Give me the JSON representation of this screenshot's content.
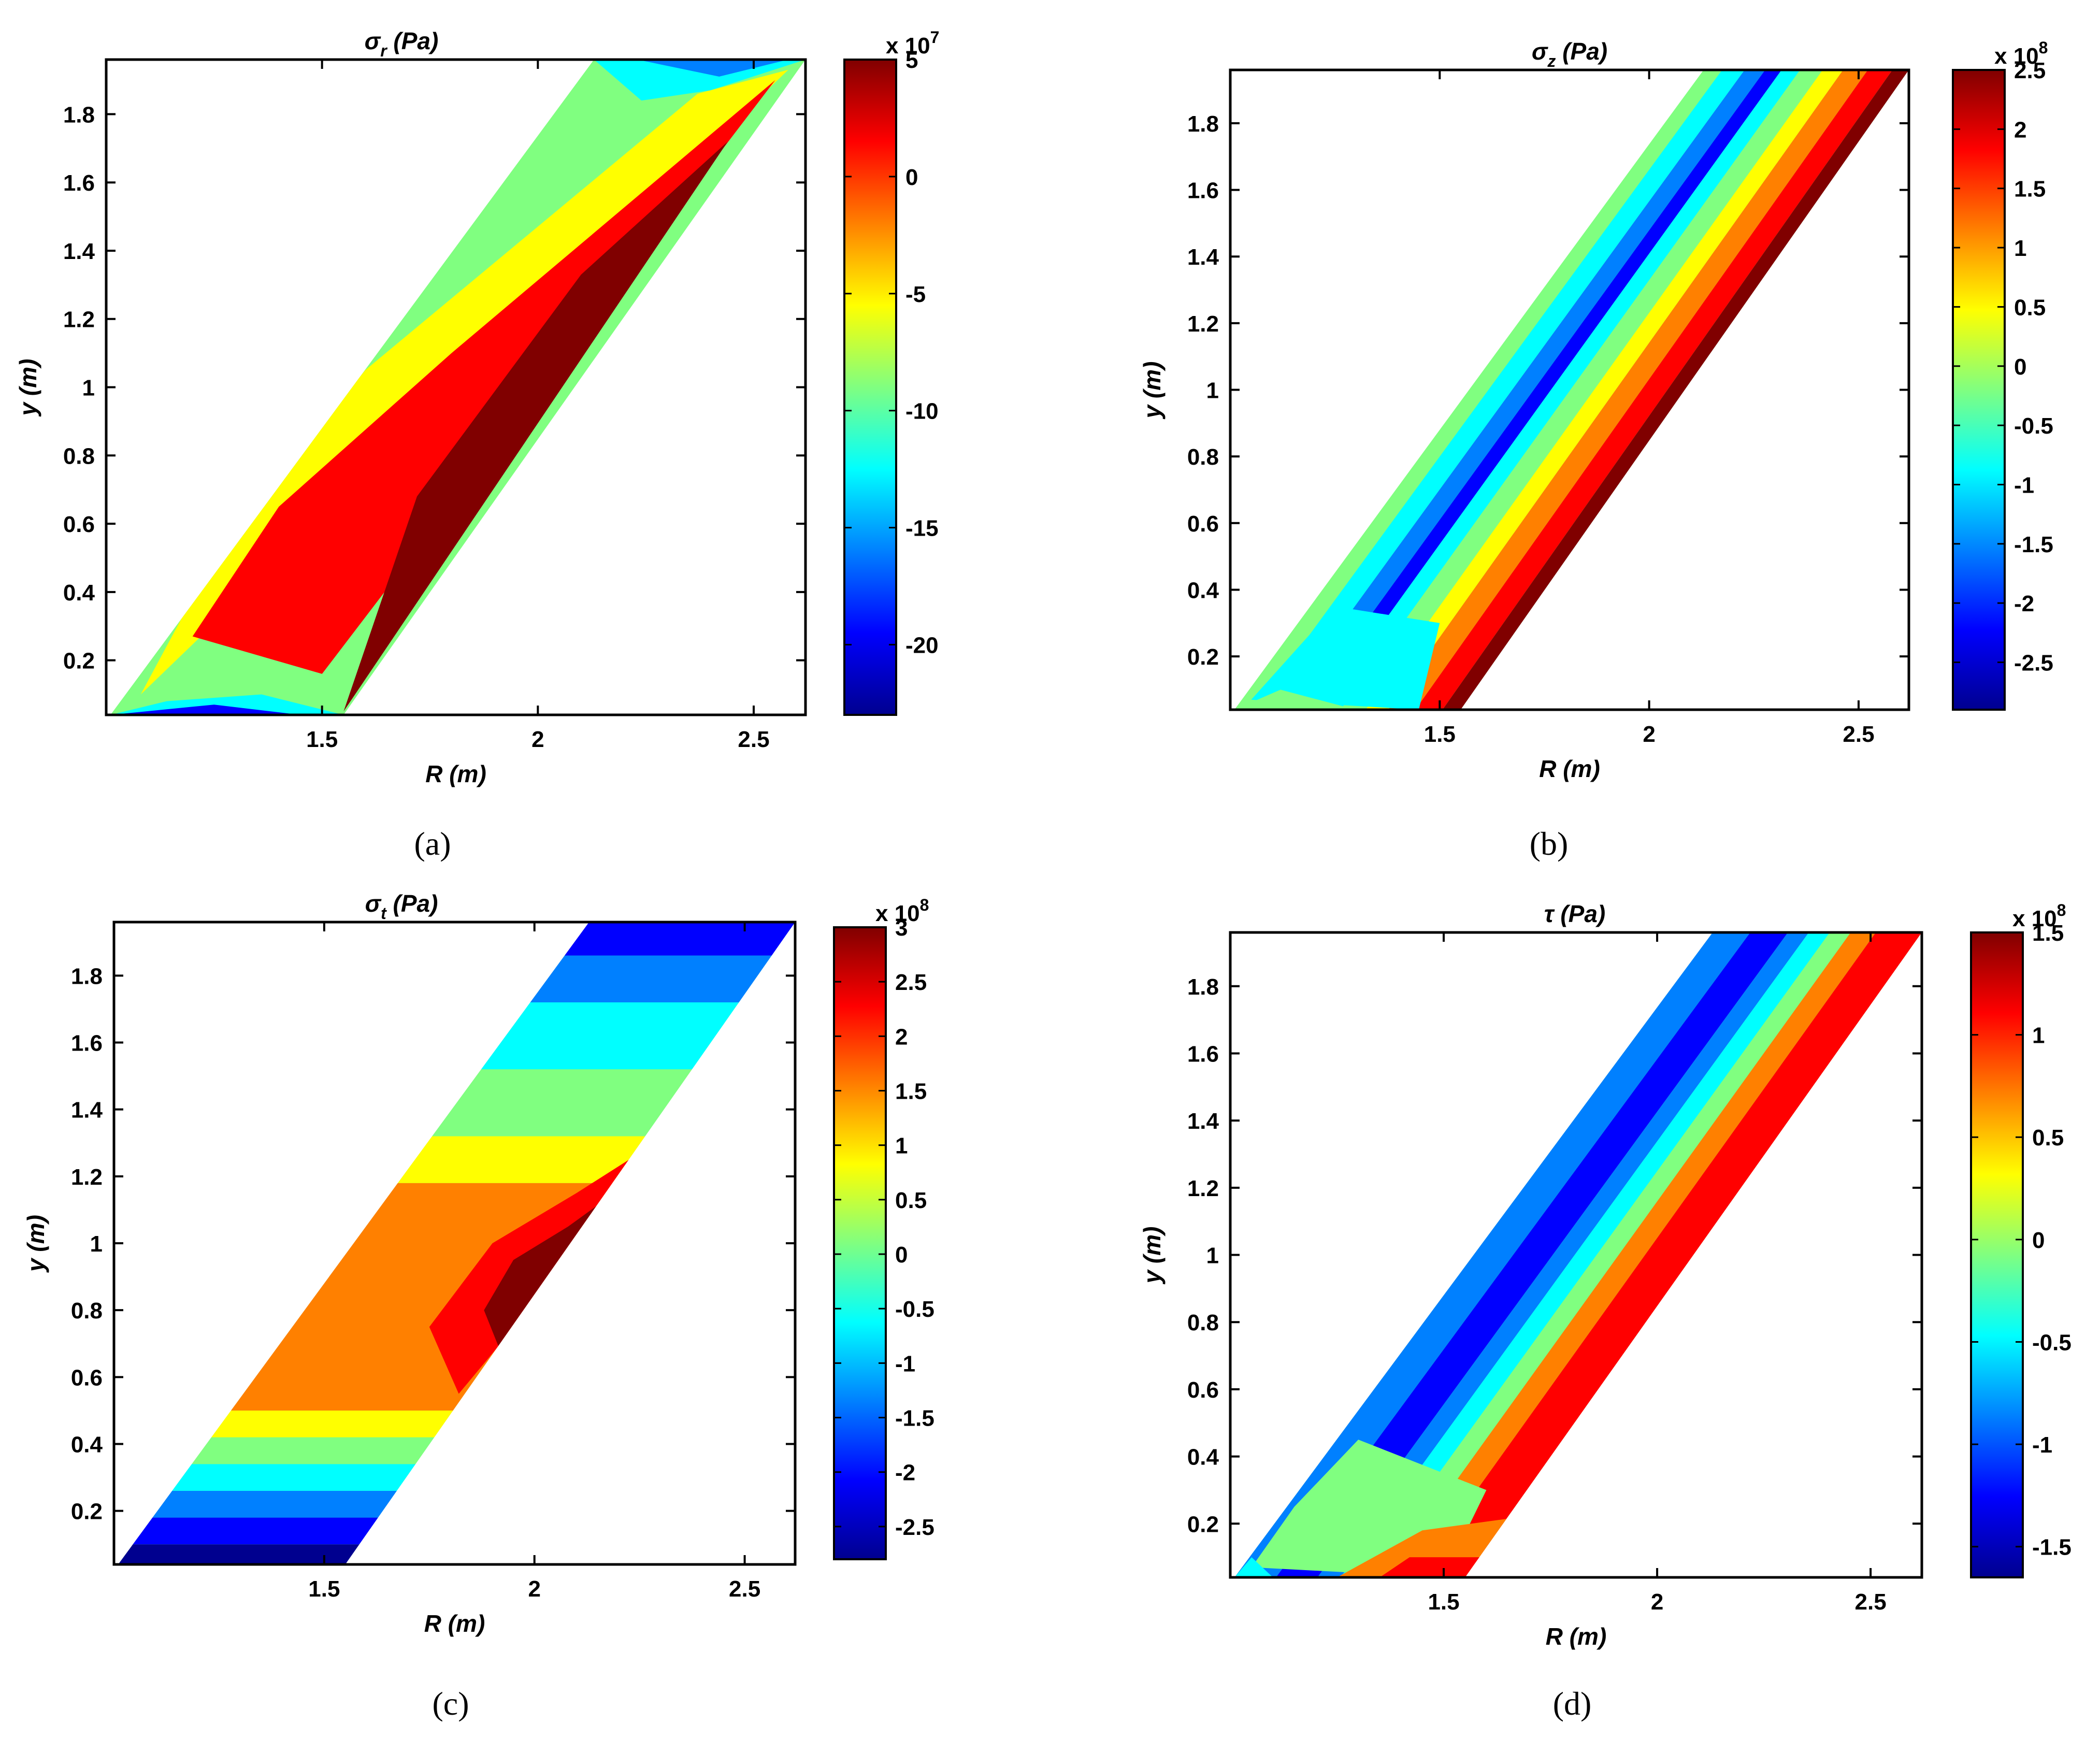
{
  "colors": {
    "jet": [
      "#00008f",
      "#0000ff",
      "#0080ff",
      "#00ffff",
      "#80ff80",
      "#ffff00",
      "#ff8000",
      "#ff0000",
      "#800000"
    ]
  },
  "chart_data": [
    {
      "type": "contour",
      "panel": "a",
      "caption": "(a)",
      "title_symbol": "σ",
      "title_sub": "r",
      "title_unit": " (Pa)",
      "xlabel": "R (m)",
      "ylabel": "y (m)",
      "xlim": [
        1.0,
        2.62
      ],
      "ylim": [
        0.04,
        1.96
      ],
      "xticks": [
        "1.5",
        "2",
        "2.5"
      ],
      "xtick_values": [
        1.5,
        2,
        2.5
      ],
      "yticks": [
        "0.2",
        "0.4",
        "0.6",
        "0.8",
        "1",
        "1.2",
        "1.4",
        "1.6",
        "1.8"
      ],
      "ytick_values": [
        0.2,
        0.4,
        0.6,
        0.8,
        1.0,
        1.2,
        1.4,
        1.6,
        1.8
      ],
      "colorbar": {
        "multiplier_base": "x 10",
        "multiplier_exp": "7",
        "range": [
          -23,
          5
        ],
        "ticks": [
          "5",
          "0",
          "-5",
          "-10",
          "-15",
          "-20"
        ],
        "tick_values": [
          5,
          0,
          -5,
          -10,
          -15,
          -20
        ]
      },
      "domain": [
        [
          1.01,
          0.04
        ],
        [
          1.55,
          0.04
        ],
        [
          2.62,
          1.96
        ],
        [
          2.13,
          1.96
        ]
      ],
      "regions": [
        {
          "level": 4,
          "points": [
            [
              1.01,
              0.04
            ],
            [
              2.62,
              1.96
            ],
            [
              2.13,
              1.96
            ]
          ]
        },
        {
          "level": 5,
          "points": [
            [
              1.08,
              0.1
            ],
            [
              2.58,
              1.93
            ],
            [
              2.37,
              1.86
            ],
            [
              1.6,
              1.05
            ],
            [
              1.25,
              0.5
            ]
          ]
        },
        {
          "level": 7,
          "points": [
            [
              1.2,
              0.27
            ],
            [
              1.5,
              0.16
            ],
            [
              2.55,
              1.9
            ],
            [
              1.8,
              1.1
            ],
            [
              1.4,
              0.65
            ]
          ]
        },
        {
          "level": 8,
          "points": [
            [
              1.55,
              0.05
            ],
            [
              2.44,
              1.72
            ],
            [
              2.1,
              1.33
            ],
            [
              1.72,
              0.68
            ]
          ]
        },
        {
          "level": 3,
          "points": [
            [
              2.13,
              1.96
            ],
            [
              2.62,
              1.96
            ],
            [
              2.4,
              1.87
            ],
            [
              2.24,
              1.84
            ]
          ]
        },
        {
          "level": 2,
          "points": [
            [
              2.23,
              1.96
            ],
            [
              2.58,
              1.96
            ],
            [
              2.42,
              1.91
            ]
          ]
        },
        {
          "level": 3,
          "points": [
            [
              1.01,
              0.04
            ],
            [
              1.55,
              0.04
            ],
            [
              1.36,
              0.1
            ],
            [
              1.14,
              0.08
            ]
          ]
        },
        {
          "level": 1,
          "points": [
            [
              1.01,
              0.04
            ],
            [
              1.45,
              0.04
            ],
            [
              1.25,
              0.07
            ]
          ]
        }
      ]
    },
    {
      "type": "contour",
      "panel": "b",
      "caption": "(b)",
      "title_symbol": "σ",
      "title_sub": "z",
      "title_unit": " (Pa)",
      "xlabel": "R (m)",
      "ylabel": "y (m)",
      "xlim": [
        1.0,
        2.62
      ],
      "ylim": [
        0.04,
        1.96
      ],
      "xticks": [
        "1.5",
        "2",
        "2.5"
      ],
      "xtick_values": [
        1.5,
        2,
        2.5
      ],
      "yticks": [
        "0.2",
        "0.4",
        "0.6",
        "0.8",
        "1",
        "1.2",
        "1.4",
        "1.6",
        "1.8"
      ],
      "ytick_values": [
        0.2,
        0.4,
        0.6,
        0.8,
        1.0,
        1.2,
        1.4,
        1.6,
        1.8
      ],
      "colorbar": {
        "multiplier_base": "x 10",
        "multiplier_exp": "8",
        "range": [
          -2.9,
          2.5
        ],
        "ticks": [
          "2.5",
          "2",
          "1.5",
          "1",
          "0.5",
          "0",
          "-0.5",
          "-1",
          "-1.5",
          "-2",
          "-2.5"
        ],
        "tick_values": [
          2.5,
          2,
          1.5,
          1,
          0.5,
          0,
          -0.5,
          -1,
          -1.5,
          -2,
          -2.5
        ]
      },
      "domain": [
        [
          1.01,
          0.04
        ],
        [
          1.55,
          0.04
        ],
        [
          2.62,
          1.96
        ],
        [
          2.13,
          1.96
        ]
      ],
      "bands": [
        {
          "level": 4,
          "from": 0.0,
          "to": 0.09
        },
        {
          "level": 3,
          "from": 0.09,
          "to": 0.2
        },
        {
          "level": 2,
          "from": 0.2,
          "to": 0.3
        },
        {
          "level": 1,
          "from": 0.3,
          "to": 0.38
        },
        {
          "level": 3,
          "from": 0.38,
          "to": 0.47
        },
        {
          "level": 4,
          "from": 0.47,
          "to": 0.58
        },
        {
          "level": 5,
          "from": 0.58,
          "to": 0.68
        },
        {
          "level": 6,
          "from": 0.68,
          "to": 0.8
        },
        {
          "level": 7,
          "from": 0.8,
          "to": 0.92
        },
        {
          "level": 8,
          "from": 0.92,
          "to": 1.0
        }
      ],
      "regions": [
        {
          "level": 3,
          "points": [
            [
              1.05,
              0.07
            ],
            [
              1.45,
              0.04
            ],
            [
              1.5,
              0.3
            ],
            [
              1.25,
              0.35
            ]
          ]
        },
        {
          "level": 4,
          "points": [
            [
              1.01,
              0.04
            ],
            [
              1.3,
              0.04
            ],
            [
              1.12,
              0.1
            ]
          ]
        }
      ]
    },
    {
      "type": "contour",
      "panel": "c",
      "caption": "(c)",
      "title_symbol": "σ",
      "title_sub": "t",
      "title_unit": " (Pa)",
      "xlabel": "R (m)",
      "ylabel": "y (m)",
      "xlim": [
        1.0,
        2.62
      ],
      "ylim": [
        0.04,
        1.96
      ],
      "xticks": [
        "1.5",
        "2",
        "2.5"
      ],
      "xtick_values": [
        1.5,
        2,
        2.5
      ],
      "yticks": [
        "0.2",
        "0.4",
        "0.6",
        "0.8",
        "1",
        "1.2",
        "1.4",
        "1.6",
        "1.8"
      ],
      "ytick_values": [
        0.2,
        0.4,
        0.6,
        0.8,
        1.0,
        1.2,
        1.4,
        1.6,
        1.8
      ],
      "colorbar": {
        "multiplier_base": "x 10",
        "multiplier_exp": "8",
        "range": [
          -2.8,
          3
        ],
        "ticks": [
          "3",
          "2.5",
          "2",
          "1.5",
          "1",
          "0.5",
          "0",
          "-0.5",
          "-1",
          "-1.5",
          "-2",
          "-2.5"
        ],
        "tick_values": [
          3,
          2.5,
          2,
          1.5,
          1,
          0.5,
          0,
          -0.5,
          -1,
          -1.5,
          -2,
          -2.5
        ]
      },
      "domain": [
        [
          1.01,
          0.04
        ],
        [
          1.55,
          0.04
        ],
        [
          2.62,
          1.96
        ],
        [
          2.13,
          1.96
        ]
      ],
      "hbands": [
        {
          "level": 0,
          "from": 0.04,
          "to": 0.1
        },
        {
          "level": 1,
          "from": 0.1,
          "to": 0.18
        },
        {
          "level": 2,
          "from": 0.18,
          "to": 0.26
        },
        {
          "level": 3,
          "from": 0.26,
          "to": 0.34
        },
        {
          "level": 4,
          "from": 0.34,
          "to": 0.42
        },
        {
          "level": 5,
          "from": 0.42,
          "to": 0.5
        },
        {
          "level": 6,
          "from": 0.5,
          "to": 1.18
        },
        {
          "level": 5,
          "from": 1.18,
          "to": 1.32
        },
        {
          "level": 4,
          "from": 1.32,
          "to": 1.52
        },
        {
          "level": 3,
          "from": 1.52,
          "to": 1.72
        },
        {
          "level": 2,
          "from": 1.72,
          "to": 1.86
        },
        {
          "level": 1,
          "from": 1.86,
          "to": 1.96
        }
      ],
      "regions": [
        {
          "level": 7,
          "points": [
            [
              1.75,
              0.75
            ],
            [
              1.82,
              0.55
            ],
            [
              2.35,
              1.35
            ],
            [
              2.1,
              1.15
            ],
            [
              1.9,
              1.0
            ]
          ]
        },
        {
          "level": 8,
          "points": [
            [
              1.88,
              0.8
            ],
            [
              1.95,
              0.58
            ],
            [
              2.3,
              1.25
            ],
            [
              2.08,
              1.05
            ],
            [
              1.95,
              0.95
            ]
          ]
        }
      ]
    },
    {
      "type": "contour",
      "panel": "d",
      "caption": "(d)",
      "title_symbol": "τ",
      "title_sub": "",
      "title_unit": " (Pa)",
      "xlabel": "R (m)",
      "ylabel": "y (m)",
      "xlim": [
        1.0,
        2.62
      ],
      "ylim": [
        0.04,
        1.96
      ],
      "xticks": [
        "1.5",
        "2",
        "2.5"
      ],
      "xtick_values": [
        1.5,
        2,
        2.5
      ],
      "yticks": [
        "0.2",
        "0.4",
        "0.6",
        "0.8",
        "1",
        "1.2",
        "1.4",
        "1.6",
        "1.8"
      ],
      "ytick_values": [
        0.2,
        0.4,
        0.6,
        0.8,
        1.0,
        1.2,
        1.4,
        1.6,
        1.8
      ],
      "colorbar": {
        "multiplier_base": "x 10",
        "multiplier_exp": "8",
        "range": [
          -1.65,
          1.5
        ],
        "ticks": [
          "1.5",
          "1",
          "0.5",
          "0",
          "-0.5",
          "-1",
          "-1.5"
        ],
        "tick_values": [
          1.5,
          1,
          0.5,
          0,
          -0.5,
          -1,
          -1.5
        ]
      },
      "domain": [
        [
          1.01,
          0.04
        ],
        [
          1.55,
          0.04
        ],
        [
          2.62,
          1.96
        ],
        [
          2.13,
          1.96
        ]
      ],
      "bands": [
        {
          "level": 2,
          "from": 0.0,
          "to": 0.18
        },
        {
          "level": 1,
          "from": 0.18,
          "to": 0.36
        },
        {
          "level": 2,
          "from": 0.36,
          "to": 0.46
        },
        {
          "level": 3,
          "from": 0.46,
          "to": 0.56
        },
        {
          "level": 4,
          "from": 0.56,
          "to": 0.66
        },
        {
          "level": 6,
          "from": 0.66,
          "to": 0.78
        },
        {
          "level": 7,
          "from": 0.78,
          "to": 1.0
        }
      ],
      "regions": [
        {
          "level": 4,
          "points": [
            [
              1.05,
              0.07
            ],
            [
              1.5,
              0.04
            ],
            [
              1.6,
              0.3
            ],
            [
              1.3,
              0.45
            ],
            [
              1.15,
              0.25
            ]
          ]
        },
        {
          "level": 6,
          "points": [
            [
              1.25,
              0.04
            ],
            [
              1.55,
              0.04
            ],
            [
              1.68,
              0.22
            ],
            [
              1.45,
              0.18
            ]
          ]
        },
        {
          "level": 7,
          "points": [
            [
              1.35,
              0.04
            ],
            [
              1.55,
              0.04
            ],
            [
              1.6,
              0.1
            ],
            [
              1.42,
              0.1
            ]
          ]
        },
        {
          "level": 3,
          "points": [
            [
              1.01,
              0.04
            ],
            [
              1.1,
              0.04
            ],
            [
              1.05,
              0.1
            ]
          ]
        }
      ]
    }
  ]
}
